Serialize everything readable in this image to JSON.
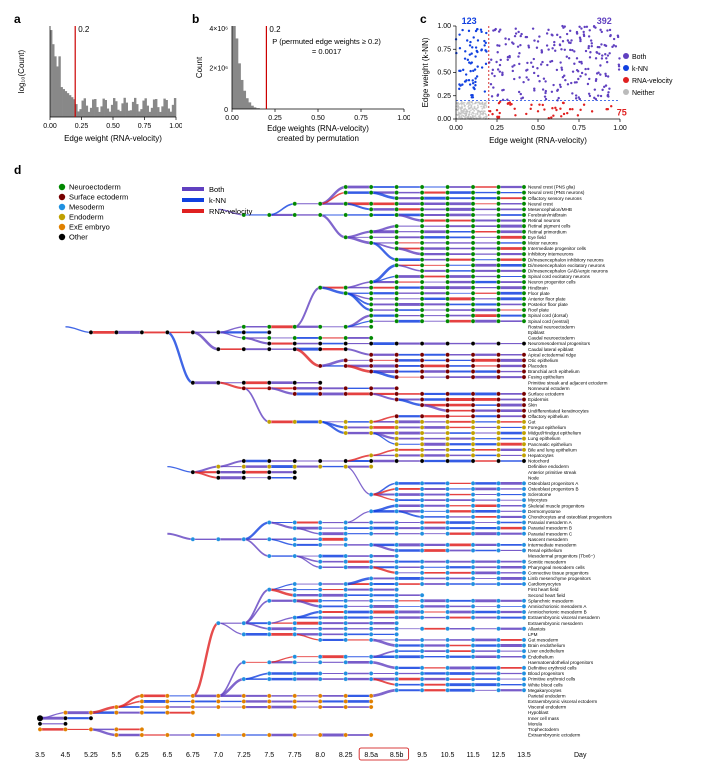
{
  "panel_a": {
    "label": "a",
    "xlabel": "Edge weight (RNA-velocity)",
    "ylabel": "log₁₀(Count)",
    "threshold": 0.2,
    "threshold_label": "0.2",
    "xlim": [
      0,
      1.0
    ],
    "ylim": [
      0,
      4.5
    ],
    "threshold_color": "#cc0000",
    "bar_color": "#888888",
    "xticks": [
      0.0,
      0.25,
      0.5,
      0.75,
      1.0
    ]
  },
  "panel_b": {
    "label": "b",
    "xlabel": "Edge weights (RNA-velocity)\ncreated by permutation",
    "ylabel": "Count",
    "threshold": 0.2,
    "threshold_label": "0.2",
    "pvalue_text": "P (permuted edge weights ≥ 0.2)\n= 0.0017",
    "xlim": [
      0,
      1.0
    ],
    "ymax_label": "4×10⁶",
    "ymid_label": "2×10⁶",
    "threshold_color": "#cc0000",
    "bar_color": "#888888",
    "xticks": [
      0.0,
      0.25,
      0.5,
      0.75,
      1.0
    ]
  },
  "panel_c": {
    "label": "c",
    "xlabel": "Edge weight (RNA-velocity)",
    "ylabel": "Edge weight (k-NN)",
    "threshold_x": 0.2,
    "threshold_y": 0.2,
    "xlim": [
      0,
      1.0
    ],
    "ylim": [
      0,
      1.0
    ],
    "ticks": [
      0.0,
      0.25,
      0.5,
      0.75,
      1.0
    ],
    "counts": {
      "both": "392",
      "knn": "123",
      "rna": "75"
    },
    "colors": {
      "both": "#6040c0",
      "knn": "#1040e0",
      "rna": "#e02020",
      "neither": "#bbbbbb",
      "threshold": "#cc0000"
    },
    "legend": [
      {
        "label": "Both",
        "color": "#6040c0"
      },
      {
        "label": "k-NN",
        "color": "#1040e0"
      },
      {
        "label": "RNA-velocity",
        "color": "#e02020"
      },
      {
        "label": "Neither",
        "color": "#bbbbbb"
      }
    ]
  },
  "panel_d": {
    "label": "d",
    "germ_legend": [
      {
        "label": "Neuroectoderm",
        "color": "#008800"
      },
      {
        "label": "Surface ectoderm",
        "color": "#770000"
      },
      {
        "label": "Mesoderm",
        "color": "#2090e0"
      },
      {
        "label": "Endoderm",
        "color": "#c0a000"
      },
      {
        "label": "ExE embryo",
        "color": "#e08000"
      },
      {
        "label": "Other",
        "color": "#000000"
      }
    ],
    "edge_legend": [
      {
        "label": "Both",
        "color": "#6040c0"
      },
      {
        "label": "k-NN",
        "color": "#1040e0"
      },
      {
        "label": "RNA-velocity",
        "color": "#e02020"
      }
    ],
    "timepoints": [
      "3.5",
      "4.5",
      "5.25",
      "5.5",
      "6.25",
      "6.5",
      "6.75",
      "7.0",
      "7.25",
      "7.5",
      "7.75",
      "8.0",
      "8.25",
      "8.5a",
      "8.5b",
      "9.5",
      "10.5",
      "11.5",
      "12.5",
      "13.5"
    ],
    "highlight_times": [
      "8.5a",
      "8.5b"
    ],
    "highlight_color": "#cc0000",
    "day_label": "Day",
    "lineages": [
      {
        "name": "Neural crest (PNS glia)",
        "germ": 0,
        "start": 12,
        "end": 19
      },
      {
        "name": "Neural crest (PNS neurons)",
        "germ": 0,
        "start": 12,
        "end": 19
      },
      {
        "name": "Olfactory sensory neurons",
        "germ": 0,
        "start": 14,
        "end": 19
      },
      {
        "name": "Neural crest",
        "germ": 0,
        "start": 10,
        "end": 19
      },
      {
        "name": "Mesencephalon/MHB",
        "germ": 0,
        "start": 13,
        "end": 19
      },
      {
        "name": "Forebrain/midbrain",
        "germ": 0,
        "start": 8,
        "end": 19
      },
      {
        "name": "Retinal neurons",
        "germ": 0,
        "start": 15,
        "end": 19
      },
      {
        "name": "Retinal pigment cells",
        "germ": 0,
        "start": 14,
        "end": 19
      },
      {
        "name": "Retinal primordium",
        "germ": 0,
        "start": 13,
        "end": 19
      },
      {
        "name": "Eye field",
        "germ": 0,
        "start": 12,
        "end": 19
      },
      {
        "name": "Motor neurons",
        "germ": 0,
        "start": 13,
        "end": 19
      },
      {
        "name": "Intermediate progenitor cells",
        "germ": 0,
        "start": 14,
        "end": 19
      },
      {
        "name": "Inhibitory interneurons",
        "germ": 0,
        "start": 15,
        "end": 19
      },
      {
        "name": "Di/mesencephalon inhibitory neurons",
        "germ": 0,
        "start": 14,
        "end": 19
      },
      {
        "name": "Di/mesencephalon excitatory neurons",
        "germ": 0,
        "start": 14,
        "end": 19
      },
      {
        "name": "Di/mesencephalon GABAergic neurons",
        "germ": 0,
        "start": 15,
        "end": 19
      },
      {
        "name": "Spinal cord excitatory neurons",
        "germ": 0,
        "start": 14,
        "end": 19
      },
      {
        "name": "Neuron progenitor cells",
        "germ": 0,
        "start": 13,
        "end": 19
      },
      {
        "name": "Hindbrain",
        "germ": 0,
        "start": 11,
        "end": 19
      },
      {
        "name": "Floor plate",
        "germ": 0,
        "start": 12,
        "end": 19
      },
      {
        "name": "Anterior floor plate",
        "germ": 0,
        "start": 13,
        "end": 19
      },
      {
        "name": "Posterior floor plate",
        "germ": 0,
        "start": 13,
        "end": 19
      },
      {
        "name": "Roof plate",
        "germ": 0,
        "start": 13,
        "end": 19
      },
      {
        "name": "Spinal cord (dorsal)",
        "germ": 0,
        "start": 13,
        "end": 19
      },
      {
        "name": "Spinal cord (ventral)",
        "germ": 0,
        "start": 13,
        "end": 19
      },
      {
        "name": "Rostral neuroectoderm",
        "germ": 0,
        "start": 8,
        "end": 13
      },
      {
        "name": "Epiblast",
        "germ": 5,
        "start": 2,
        "end": 9
      },
      {
        "name": "Caudal neuroectoderm",
        "germ": 0,
        "start": 8,
        "end": 13
      },
      {
        "name": "Neuromesodermal progenitors",
        "germ": 5,
        "start": 9,
        "end": 19
      },
      {
        "name": "Caudal lateral epiblast",
        "germ": 5,
        "start": 7,
        "end": 12
      },
      {
        "name": "Apical ectodermal ridge",
        "germ": 1,
        "start": 13,
        "end": 19
      },
      {
        "name": "Otic epithelium",
        "germ": 1,
        "start": 12,
        "end": 19
      },
      {
        "name": "Placodes",
        "germ": 1,
        "start": 11,
        "end": 19
      },
      {
        "name": "Branchial arch epithelium",
        "germ": 1,
        "start": 13,
        "end": 19
      },
      {
        "name": "Fusing epithelium",
        "germ": 1,
        "start": 14,
        "end": 19
      },
      {
        "name": "Primitive streak and adjacent ectoderm",
        "germ": 5,
        "start": 6,
        "end": 11
      },
      {
        "name": "Nonneural ectoderm",
        "germ": 1,
        "start": 8,
        "end": 14
      },
      {
        "name": "Surface ectoderm",
        "germ": 1,
        "start": 10,
        "end": 19
      },
      {
        "name": "Epidermis",
        "germ": 1,
        "start": 14,
        "end": 19
      },
      {
        "name": "Skin",
        "germ": 1,
        "start": 15,
        "end": 19
      },
      {
        "name": "Undifferentiated keratinocytes",
        "germ": 1,
        "start": 16,
        "end": 19
      },
      {
        "name": "Olfactory epithelium",
        "germ": 1,
        "start": 14,
        "end": 19
      },
      {
        "name": "Gut",
        "germ": 3,
        "start": 9,
        "end": 19
      },
      {
        "name": "Foregut epithelium",
        "germ": 3,
        "start": 12,
        "end": 19
      },
      {
        "name": "Midgut/Hindgut epithelium",
        "germ": 3,
        "start": 12,
        "end": 19
      },
      {
        "name": "Lung epithelium",
        "germ": 3,
        "start": 14,
        "end": 19
      },
      {
        "name": "Pancreatic epithelium",
        "germ": 3,
        "start": 14,
        "end": 19
      },
      {
        "name": "Bile and lung epithelium",
        "germ": 3,
        "start": 14,
        "end": 19
      },
      {
        "name": "Hepatocytes",
        "germ": 3,
        "start": 13,
        "end": 19
      },
      {
        "name": "Notochord",
        "germ": 5,
        "start": 8,
        "end": 19
      },
      {
        "name": "Definitive endoderm",
        "germ": 3,
        "start": 7,
        "end": 13
      },
      {
        "name": "Anterior primitive streak",
        "germ": 5,
        "start": 6,
        "end": 10
      },
      {
        "name": "Node",
        "germ": 5,
        "start": 7,
        "end": 10
      },
      {
        "name": "Osteoblast progenitors A",
        "germ": 2,
        "start": 14,
        "end": 19
      },
      {
        "name": "Osteoblast progenitors B",
        "germ": 2,
        "start": 14,
        "end": 19
      },
      {
        "name": "Sclerotome",
        "germ": 2,
        "start": 13,
        "end": 19
      },
      {
        "name": "Myocytes",
        "germ": 2,
        "start": 14,
        "end": 19
      },
      {
        "name": "Skeletal muscle progenitors",
        "germ": 2,
        "start": 14,
        "end": 19
      },
      {
        "name": "Dermomyotome",
        "germ": 2,
        "start": 13,
        "end": 19
      },
      {
        "name": "Chondrocytes and osteoblast progenitors",
        "germ": 2,
        "start": 15,
        "end": 19
      },
      {
        "name": "Paraxial mesoderm A",
        "germ": 2,
        "start": 9,
        "end": 19
      },
      {
        "name": "Paraxial mesoderm B",
        "germ": 2,
        "start": 10,
        "end": 19
      },
      {
        "name": "Paraxial mesoderm C",
        "germ": 2,
        "start": 11,
        "end": 19
      },
      {
        "name": "Nascent mesoderm",
        "germ": 2,
        "start": 6,
        "end": 12
      },
      {
        "name": "Intermediate mesoderm",
        "germ": 2,
        "start": 10,
        "end": 19
      },
      {
        "name": "Renal epithelium",
        "germ": 2,
        "start": 14,
        "end": 19
      },
      {
        "name": "Mesodermal progenitors (Tbx6−)",
        "germ": 2,
        "start": 9,
        "end": 14
      },
      {
        "name": "Somitic mesoderm",
        "germ": 2,
        "start": 11,
        "end": 19
      },
      {
        "name": "Pharyngeal mesoderm cells",
        "germ": 2,
        "start": 11,
        "end": 19
      },
      {
        "name": "Connective tissue progenitors",
        "germ": 2,
        "start": 14,
        "end": 19
      },
      {
        "name": "Limb mesenchyme progenitors",
        "germ": 2,
        "start": 13,
        "end": 19
      },
      {
        "name": "Cardiomyocytes",
        "germ": 2,
        "start": 10,
        "end": 19
      },
      {
        "name": "First heart field",
        "germ": 2,
        "start": 9,
        "end": 14
      },
      {
        "name": "Second heart field",
        "germ": 2,
        "start": 10,
        "end": 15
      },
      {
        "name": "Splanchnic mesoderm",
        "germ": 2,
        "start": 9,
        "end": 19
      },
      {
        "name": "Amniochorionic mesoderm A",
        "germ": 2,
        "start": 11,
        "end": 19
      },
      {
        "name": "Amniochorionic mesoderm B",
        "germ": 2,
        "start": 11,
        "end": 19
      },
      {
        "name": "Extraembryonic visceral mesoderm",
        "germ": 2,
        "start": 10,
        "end": 19
      },
      {
        "name": "Extraembryonic mesoderm",
        "germ": 2,
        "start": 7,
        "end": 14
      },
      {
        "name": "Allantois",
        "germ": 2,
        "start": 9,
        "end": 19
      },
      {
        "name": "LPM",
        "germ": 2,
        "start": 8,
        "end": 14
      },
      {
        "name": "Gut mesoderm",
        "germ": 2,
        "start": 11,
        "end": 19
      },
      {
        "name": "Brain endothelium",
        "germ": 2,
        "start": 14,
        "end": 19
      },
      {
        "name": "Liver endothelium",
        "germ": 2,
        "start": 14,
        "end": 19
      },
      {
        "name": "Endothelium",
        "germ": 2,
        "start": 10,
        "end": 19
      },
      {
        "name": "Haematoendothelial progenitors",
        "germ": 2,
        "start": 8,
        "end": 13
      },
      {
        "name": "Definitive erythroid cells",
        "germ": 2,
        "start": 14,
        "end": 19
      },
      {
        "name": "Blood progenitors",
        "germ": 2,
        "start": 9,
        "end": 19
      },
      {
        "name": "Primitive erythroid cells",
        "germ": 2,
        "start": 8,
        "end": 19
      },
      {
        "name": "White blood cells",
        "germ": 2,
        "start": 14,
        "end": 19
      },
      {
        "name": "Megakaryocytes",
        "germ": 2,
        "start": 14,
        "end": 19
      },
      {
        "name": "Parietal endoderm",
        "germ": 4,
        "start": 4,
        "end": 13
      },
      {
        "name": "Extraembryonic visceral ectoderm",
        "germ": 4,
        "start": 4,
        "end": 13
      },
      {
        "name": "Visceral endoderm",
        "germ": 4,
        "start": 3,
        "end": 13
      },
      {
        "name": "Hypoblast",
        "germ": 4,
        "start": 1,
        "end": 6
      },
      {
        "name": "Inner cell mass",
        "germ": 5,
        "start": 0,
        "end": 2
      },
      {
        "name": "Morula",
        "germ": 5,
        "start": 0,
        "end": 1
      },
      {
        "name": "Trophectoderm",
        "germ": 4,
        "start": 0,
        "end": 4
      },
      {
        "name": "Extraembryonic ectoderm",
        "germ": 4,
        "start": 3,
        "end": 13
      }
    ]
  }
}
